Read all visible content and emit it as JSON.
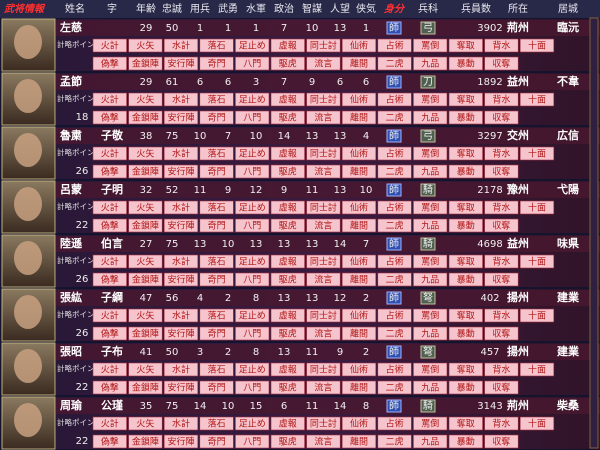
{
  "header": {
    "title": "武将情報",
    "columns": [
      "姓名",
      "字",
      "年齢",
      "忠誠",
      "用兵",
      "武勇",
      "水軍",
      "政治",
      "智謀",
      "人望",
      "侠気",
      "身分",
      "兵科",
      "兵員数",
      "所在",
      "居城"
    ]
  },
  "points_label": "計略ポイント",
  "skills": {
    "line1": [
      "火計",
      "火矢",
      "水計",
      "落石",
      "足止め",
      "虚報",
      "同士討",
      "仙術",
      "占術",
      "罵倒",
      "奪取",
      "背水",
      "十面"
    ],
    "line2": [
      "偽撃",
      "金鎖陣",
      "安行陣",
      "奇門",
      "八門",
      "駆虎",
      "流言",
      "離間",
      "二虎",
      "九品",
      "暴動",
      "収奪"
    ]
  },
  "officers": [
    {
      "name": "左慈",
      "stats": [
        29,
        50,
        1,
        1,
        1,
        7,
        10,
        13,
        1
      ],
      "rank": "師",
      "unit": "弓",
      "troops": 3902,
      "province": "荊州",
      "city": "臨沅"
    },
    {
      "name": "孟節",
      "stats": [
        29,
        61,
        6,
        6,
        3,
        7,
        9,
        6,
        6
      ],
      "rank": "師",
      "unit": "刀",
      "troops": 1892,
      "province": "益州",
      "city": "不韋",
      "points": 18
    },
    {
      "name": "魯粛",
      "style": "子敬",
      "stats": [
        38,
        75,
        10,
        7,
        10,
        14,
        13,
        13,
        4
      ],
      "rank": "師",
      "unit": "弓",
      "troops": 3297,
      "province": "交州",
      "city": "広信",
      "points": 26
    },
    {
      "name": "呂蒙",
      "style": "子明",
      "stats": [
        32,
        52,
        11,
        9,
        12,
        9,
        11,
        13,
        10
      ],
      "rank": "師",
      "unit": "騎",
      "troops": 2178,
      "province": "豫州",
      "city": "弋陽",
      "points": 22
    },
    {
      "name": "陸遜",
      "style": "伯言",
      "stats": [
        27,
        75,
        13,
        10,
        13,
        13,
        13,
        14,
        7
      ],
      "rank": "師",
      "unit": "騎",
      "troops": 4698,
      "province": "益州",
      "city": "味県",
      "points": 26
    },
    {
      "name": "張紘",
      "style": "子綱",
      "stats": [
        47,
        56,
        4,
        2,
        8,
        13,
        13,
        12,
        2
      ],
      "rank": "師",
      "unit": "弩",
      "troops": 402,
      "province": "揚州",
      "city": "建業",
      "points": 26
    },
    {
      "name": "張昭",
      "style": "子布",
      "stats": [
        41,
        50,
        3,
        2,
        8,
        13,
        11,
        9,
        2
      ],
      "rank": "師",
      "unit": "弩",
      "troops": 457,
      "province": "揚州",
      "city": "建業",
      "points": 22
    },
    {
      "name": "周瑜",
      "style": "公瑾",
      "stats": [
        35,
        75,
        14,
        10,
        15,
        6,
        11,
        14,
        8
      ],
      "rank": "師",
      "unit": "騎",
      "troops": 3143,
      "province": "荊州",
      "city": "柴桑",
      "points": 22
    }
  ]
}
